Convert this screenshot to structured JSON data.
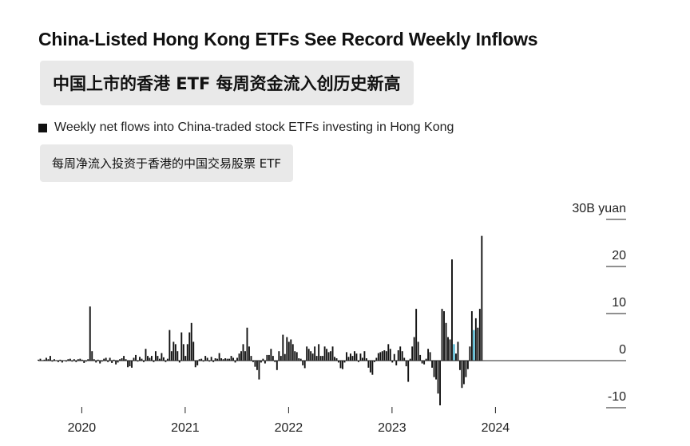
{
  "title": "China-Listed Hong Kong ETFs See Record Weekly Inflows",
  "title_cn": "中国上市的香港 ETF 每周资金流入创历史新高",
  "subtitle": "Weekly net flows into China-traded stock ETFs investing in Hong Kong",
  "subtitle_cn": "每周净流入投资于香港的中国交易股票 ETF",
  "colors": {
    "bars": "#111111",
    "highlight": "#2aa6c7",
    "zero_line": "#222222",
    "grid": "#cccccc"
  },
  "chart_data": {
    "type": "bar",
    "unit": "B yuan",
    "y_ticks": [
      {
        "value": 30,
        "label": "30B yuan"
      },
      {
        "value": 20,
        "label": "20"
      },
      {
        "value": 10,
        "label": "10"
      },
      {
        "value": 0,
        "label": "0"
      },
      {
        "value": -10,
        "label": "-10"
      }
    ],
    "ylim": [
      -11,
      31
    ],
    "x_ticks": [
      {
        "value": 2020,
        "label": "2020"
      },
      {
        "value": 2021,
        "label": "2021"
      },
      {
        "value": 2022,
        "label": "2022"
      },
      {
        "value": 2023,
        "label": "2023"
      },
      {
        "value": 2024,
        "label": "2024"
      }
    ],
    "x_start": 2019.58,
    "x_step": 0.01923,
    "highlighted_weeks": [
      209,
      219
    ],
    "values": [
      0.2,
      0.4,
      0.1,
      0.2,
      0.6,
      0.3,
      1.0,
      -0.2,
      0.3,
      0.1,
      -0.3,
      0.2,
      -0.4,
      0.1,
      -0.2,
      0.3,
      0.4,
      -0.2,
      0.3,
      -0.3,
      0.3,
      0.4,
      0.2,
      -0.5,
      -0.2,
      0.3,
      11.5,
      2.0,
      0.3,
      -0.4,
      0.2,
      -0.6,
      -0.2,
      0.4,
      0.6,
      -0.3,
      0.6,
      -0.5,
      0.2,
      -0.8,
      -0.4,
      0.3,
      0.5,
      1.0,
      0.3,
      -1.4,
      -1.2,
      -1.5,
      0.6,
      1.2,
      -0.2,
      0.8,
      0.4,
      -0.3,
      2.5,
      1.0,
      0.6,
      1.0,
      -0.3,
      2.0,
      1.0,
      0.4,
      1.6,
      0.7,
      -0.3,
      0.4,
      6.5,
      2.0,
      4.0,
      3.5,
      2.0,
      -0.4,
      6.0,
      3.5,
      1.0,
      3.5,
      6.0,
      8.0,
      4.0,
      -1.4,
      -1.0,
      0.3,
      0.4,
      -0.2,
      1.0,
      0.6,
      -0.2,
      0.8,
      -0.3,
      0.5,
      0.4,
      1.6,
      0.5,
      0.3,
      0.5,
      0.4,
      0.4,
      1.0,
      0.6,
      -0.4,
      0.6,
      1.5,
      2.0,
      3.5,
      2.0,
      7.0,
      3.0,
      1.0,
      -0.3,
      -1.3,
      -2.0,
      -4.0,
      -0.4,
      0.4,
      -0.6,
      1.2,
      1.2,
      2.5,
      1.0,
      -0.3,
      -2.0,
      2.0,
      1.0,
      5.5,
      1.4,
      5.0,
      4.0,
      4.5,
      3.5,
      2.0,
      1.8,
      0.5,
      0.4,
      -1.0,
      -1.6,
      3.0,
      2.5,
      2.0,
      1.5,
      3.0,
      1.0,
      3.5,
      1.0,
      1.0,
      3.0,
      2.5,
      1.8,
      2.0,
      3.0,
      0.8,
      0.5,
      -0.4,
      -1.6,
      -1.8,
      -0.4,
      1.8,
      0.8,
      1.5,
      1.0,
      2.0,
      1.5,
      -0.3,
      1.5,
      0.6,
      2.0,
      0.5,
      -1.5,
      -2.5,
      -3.0,
      -0.3,
      0.6,
      1.6,
      1.8,
      2.0,
      2.2,
      2.0,
      3.5,
      2.5,
      -0.4,
      1.4,
      -1.0,
      2.2,
      3.0,
      2.0,
      0.6,
      -1.2,
      -4.5,
      0.4,
      3.0,
      5.0,
      11.0,
      4.0,
      1.2,
      -0.6,
      -0.8,
      0.4,
      2.5,
      1.8,
      -1.5,
      -3.5,
      -4.0,
      -7.0,
      -9.5,
      11.0,
      10.5,
      8.0,
      5.0,
      4.5,
      21.5,
      3.5,
      1.5,
      4.0,
      -2.0,
      -5.8,
      -5.0,
      -3.5,
      -1.8,
      3.0,
      10.5,
      6.5,
      9.0,
      7.0,
      11.0,
      26.5
    ]
  }
}
